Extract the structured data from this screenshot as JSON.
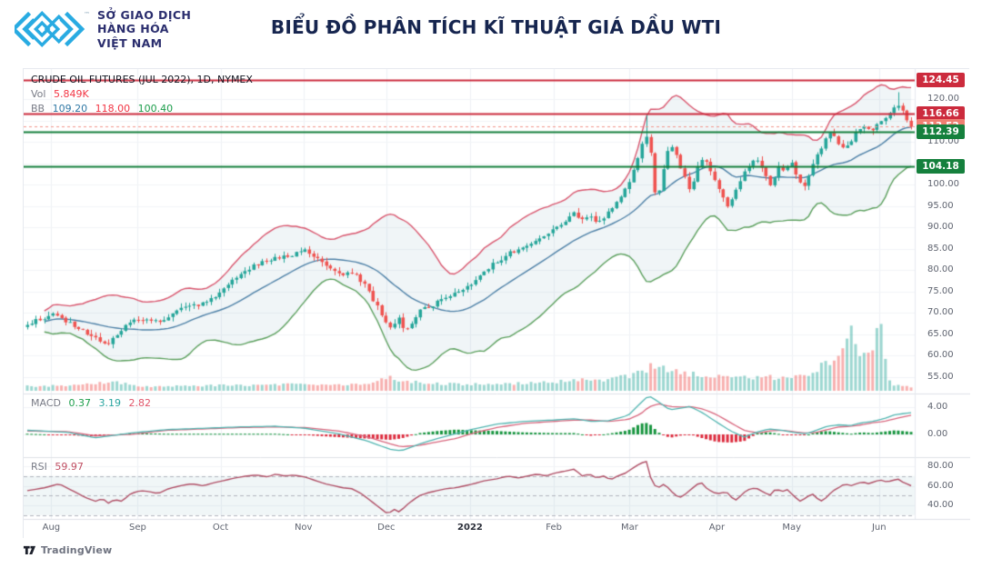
{
  "header": {
    "logo": {
      "line1": "SỞ GIAO DỊCH",
      "line2": "HÀNG HÓA",
      "line3": "VIỆT NAM",
      "tm": "™"
    },
    "title": "BIỂU ĐỒ PHÂN TÍCH KĨ THUẬT GIÁ DẦU WTI"
  },
  "attribution": {
    "text": "TradingView"
  },
  "chart_data": {
    "type": "candlestick",
    "symbol_line": "CRUDE OIL FUTURES (JUL 2022), 1D, NYMEX",
    "interval": "1D",
    "exchange": "NYMEX",
    "indicators": {
      "volume": {
        "label": "Vol",
        "value": "5.849K"
      },
      "bollinger": {
        "label": "BB",
        "basis": "109.20",
        "upper": "118.00",
        "lower": "100.40"
      },
      "macd": {
        "label": "MACD",
        "hist": "0.37",
        "macd": "3.19",
        "signal": "2.82"
      },
      "rsi": {
        "label": "RSI",
        "value": "59.97"
      }
    },
    "levels": [
      {
        "label": "124.45",
        "price": 124.45,
        "style": "solid",
        "line": "#cc2b3d",
        "badge": "#cc2b3d"
      },
      {
        "label": "116.66",
        "price": 116.66,
        "style": "solid",
        "line": "#cc2b3d",
        "badge": "#cc2b3d"
      },
      {
        "label": "113.52",
        "price": 113.52,
        "style": "dashed",
        "line": "#f2968c",
        "badge": "#ef7f72"
      },
      {
        "label": "112.39",
        "price": 112.39,
        "style": "solid",
        "line": "#15803d",
        "badge": "#15803d"
      },
      {
        "label": "104.18",
        "price": 104.18,
        "style": "solid",
        "line": "#15803d",
        "badge": "#15803d"
      }
    ],
    "price_axis_ticks": [
      120,
      115,
      110,
      105,
      100,
      95,
      90,
      85,
      80,
      75,
      70,
      65,
      60,
      55
    ],
    "price_ylim": [
      51,
      127
    ],
    "macd_axis_ticks": [
      4,
      0
    ],
    "rsi_axis_ticks": [
      80,
      60,
      40
    ],
    "rsi_band_levels": [
      70,
      50,
      30
    ],
    "months": [
      {
        "label": "Aug",
        "f": 0.031
      },
      {
        "label": "Sep",
        "f": 0.128
      },
      {
        "label": "Oct",
        "f": 0.221
      },
      {
        "label": "Nov",
        "f": 0.314
      },
      {
        "label": "Dec",
        "f": 0.407
      },
      {
        "label": "2022",
        "f": 0.501
      },
      {
        "label": "Feb",
        "f": 0.595
      },
      {
        "label": "Mar",
        "f": 0.68
      },
      {
        "label": "Apr",
        "f": 0.778
      },
      {
        "label": "May",
        "f": 0.862
      },
      {
        "label": "Jun",
        "f": 0.96
      }
    ],
    "last_close": 113.52,
    "candle_count": 208,
    "price_path": [
      [
        0,
        67.5
      ],
      [
        0.015,
        68.3
      ],
      [
        0.031,
        69.5
      ],
      [
        0.046,
        67.8
      ],
      [
        0.061,
        66
      ],
      [
        0.077,
        63.8
      ],
      [
        0.089,
        62.3
      ],
      [
        0.102,
        65
      ],
      [
        0.117,
        68
      ],
      [
        0.133,
        68.8
      ],
      [
        0.148,
        67.8
      ],
      [
        0.163,
        69.8
      ],
      [
        0.179,
        71.2
      ],
      [
        0.194,
        71.8
      ],
      [
        0.209,
        73.2
      ],
      [
        0.224,
        76
      ],
      [
        0.24,
        78.8
      ],
      [
        0.255,
        80.8
      ],
      [
        0.27,
        82.2
      ],
      [
        0.286,
        83.2
      ],
      [
        0.301,
        83.8
      ],
      [
        0.314,
        84.3
      ],
      [
        0.327,
        83.2
      ],
      [
        0.342,
        80.5
      ],
      [
        0.357,
        79.2
      ],
      [
        0.372,
        78.6
      ],
      [
        0.383,
        76.2
      ],
      [
        0.393,
        72.5
      ],
      [
        0.403,
        68.8
      ],
      [
        0.411,
        66.2
      ],
      [
        0.419,
        68.8
      ],
      [
        0.428,
        66
      ],
      [
        0.436,
        68.2
      ],
      [
        0.444,
        70.2
      ],
      [
        0.454,
        71.4
      ],
      [
        0.464,
        72.4
      ],
      [
        0.474,
        73.4
      ],
      [
        0.485,
        74.8
      ],
      [
        0.501,
        76.6
      ],
      [
        0.515,
        79.4
      ],
      [
        0.531,
        82
      ],
      [
        0.546,
        84
      ],
      [
        0.561,
        85.4
      ],
      [
        0.577,
        86.8
      ],
      [
        0.595,
        89.4
      ],
      [
        0.607,
        91.4
      ],
      [
        0.619,
        93.4
      ],
      [
        0.628,
        91.6
      ],
      [
        0.638,
        92.2
      ],
      [
        0.648,
        91.2
      ],
      [
        0.658,
        93.8
      ],
      [
        0.668,
        96.4
      ],
      [
        0.68,
        100.2
      ],
      [
        0.686,
        103.6
      ],
      [
        0.691,
        106.6
      ],
      [
        0.696,
        109.6
      ],
      [
        0.7,
        111.4
      ],
      [
        0.704,
        110.8
      ],
      [
        0.708,
        99.4
      ],
      [
        0.713,
        96.6
      ],
      [
        0.718,
        102.2
      ],
      [
        0.724,
        107.6
      ],
      [
        0.731,
        109
      ],
      [
        0.737,
        105.2
      ],
      [
        0.743,
        101.8
      ],
      [
        0.75,
        98.6
      ],
      [
        0.758,
        103.8
      ],
      [
        0.765,
        106.2
      ],
      [
        0.772,
        103.2
      ],
      [
        0.779,
        100.4
      ],
      [
        0.787,
        96.6
      ],
      [
        0.794,
        94.6
      ],
      [
        0.801,
        98.2
      ],
      [
        0.809,
        102
      ],
      [
        0.817,
        104.4
      ],
      [
        0.826,
        106
      ],
      [
        0.834,
        102.4
      ],
      [
        0.842,
        99.6
      ],
      [
        0.85,
        104.8
      ],
      [
        0.857,
        103.2
      ],
      [
        0.864,
        105.4
      ],
      [
        0.871,
        101.6
      ],
      [
        0.879,
        99.4
      ],
      [
        0.886,
        103.4
      ],
      [
        0.893,
        106.8
      ],
      [
        0.901,
        109.8
      ],
      [
        0.908,
        112.2
      ],
      [
        0.916,
        110.2
      ],
      [
        0.923,
        108.6
      ],
      [
        0.932,
        110.4
      ],
      [
        0.94,
        112.8
      ],
      [
        0.948,
        114.2
      ],
      [
        0.956,
        112.6
      ],
      [
        0.964,
        114.8
      ],
      [
        0.972,
        116.2
      ],
      [
        0.979,
        117.4
      ],
      [
        0.984,
        118.8
      ],
      [
        0.99,
        117
      ],
      [
        1,
        113.52
      ]
    ],
    "wick_spikes": [
      [
        0.7,
        116.5
      ],
      [
        0.984,
        121.6
      ]
    ],
    "volume_path": [
      [
        0,
        5
      ],
      [
        0.05,
        6
      ],
      [
        0.08,
        8
      ],
      [
        0.1,
        9
      ],
      [
        0.13,
        5
      ],
      [
        0.18,
        5
      ],
      [
        0.22,
        6
      ],
      [
        0.27,
        6
      ],
      [
        0.3,
        7
      ],
      [
        0.34,
        6
      ],
      [
        0.37,
        7
      ],
      [
        0.39,
        9
      ],
      [
        0.403,
        12
      ],
      [
        0.411,
        14
      ],
      [
        0.43,
        11
      ],
      [
        0.46,
        8
      ],
      [
        0.5,
        7
      ],
      [
        0.55,
        8
      ],
      [
        0.6,
        10
      ],
      [
        0.63,
        12
      ],
      [
        0.655,
        11
      ],
      [
        0.68,
        16
      ],
      [
        0.7,
        24
      ],
      [
        0.713,
        28
      ],
      [
        0.73,
        22
      ],
      [
        0.75,
        18
      ],
      [
        0.77,
        16
      ],
      [
        0.79,
        15
      ],
      [
        0.81,
        14
      ],
      [
        0.83,
        16
      ],
      [
        0.85,
        14
      ],
      [
        0.87,
        15
      ],
      [
        0.885,
        18
      ],
      [
        0.895,
        24
      ],
      [
        0.905,
        30
      ],
      [
        0.912,
        38
      ],
      [
        0.92,
        45
      ],
      [
        0.927,
        62
      ],
      [
        0.931,
        72
      ],
      [
        0.936,
        50
      ],
      [
        0.944,
        40
      ],
      [
        0.952,
        42
      ],
      [
        0.958,
        38
      ],
      [
        0.963,
        86
      ],
      [
        0.968,
        58
      ],
      [
        0.973,
        12
      ],
      [
        0.98,
        7
      ],
      [
        0.99,
        5
      ],
      [
        1,
        4
      ]
    ],
    "macd_path": [
      [
        0,
        0.6,
        0.5
      ],
      [
        0.046,
        0.3,
        0.4
      ],
      [
        0.077,
        -0.5,
        -0.2
      ],
      [
        0.117,
        0.2,
        0
      ],
      [
        0.158,
        0.7,
        0.6
      ],
      [
        0.199,
        0.9,
        0.8
      ],
      [
        0.24,
        1.1,
        1
      ],
      [
        0.281,
        1.2,
        1.1
      ],
      [
        0.314,
        0.9,
        1
      ],
      [
        0.352,
        0.1,
        0.5
      ],
      [
        0.383,
        -0.9,
        -0.3
      ],
      [
        0.411,
        -2.2,
        -1.4
      ],
      [
        0.423,
        -2.4,
        -1.8
      ],
      [
        0.444,
        -1.4,
        -1.6
      ],
      [
        0.464,
        -0.6,
        -1.1
      ],
      [
        0.485,
        0.1,
        -0.6
      ],
      [
        0.505,
        0.8,
        0.2
      ],
      [
        0.531,
        1.5,
        1
      ],
      [
        0.561,
        1.9,
        1.6
      ],
      [
        0.595,
        2.1,
        1.9
      ],
      [
        0.619,
        2.3,
        2.1
      ],
      [
        0.638,
        1.9,
        2.1
      ],
      [
        0.658,
        2,
        1.9
      ],
      [
        0.68,
        2.8,
        2.2
      ],
      [
        0.694,
        4.6,
        3
      ],
      [
        0.703,
        5.7,
        4
      ],
      [
        0.714,
        4.8,
        4.5
      ],
      [
        0.727,
        3.6,
        4.1
      ],
      [
        0.742,
        3.9,
        4
      ],
      [
        0.75,
        4.1,
        4.1
      ],
      [
        0.765,
        3.1,
        3.7
      ],
      [
        0.78,
        1.8,
        2.9
      ],
      [
        0.796,
        0.5,
        1.7
      ],
      [
        0.811,
        -0.4,
        0.6
      ],
      [
        0.827,
        0.4,
        0.2
      ],
      [
        0.84,
        0.8,
        0.5
      ],
      [
        0.854,
        0.6,
        0.6
      ],
      [
        0.867,
        0.3,
        0.4
      ],
      [
        0.881,
        0.1,
        0.2
      ],
      [
        0.893,
        0.6,
        0.3
      ],
      [
        0.905,
        1.2,
        0.7
      ],
      [
        0.918,
        1.4,
        1.1
      ],
      [
        0.932,
        1.3,
        1.2
      ],
      [
        0.944,
        1.7,
        1.4
      ],
      [
        0.956,
        1.9,
        1.7
      ],
      [
        0.969,
        2.3,
        1.9
      ],
      [
        0.982,
        2.9,
        2.3
      ],
      [
        1,
        3.19,
        2.82
      ]
    ],
    "rsi_path": [
      [
        0,
        55
      ],
      [
        0.02,
        58
      ],
      [
        0.036,
        62
      ],
      [
        0.051,
        55
      ],
      [
        0.066,
        48
      ],
      [
        0.077,
        44
      ],
      [
        0.085,
        47
      ],
      [
        0.092,
        42
      ],
      [
        0.099,
        46
      ],
      [
        0.107,
        44
      ],
      [
        0.117,
        52
      ],
      [
        0.128,
        55
      ],
      [
        0.138,
        54
      ],
      [
        0.148,
        52
      ],
      [
        0.16,
        57
      ],
      [
        0.173,
        60
      ],
      [
        0.186,
        62
      ],
      [
        0.199,
        60
      ],
      [
        0.211,
        63
      ],
      [
        0.221,
        65
      ],
      [
        0.235,
        68
      ],
      [
        0.248,
        70
      ],
      [
        0.26,
        71
      ],
      [
        0.272,
        69
      ],
      [
        0.281,
        72
      ],
      [
        0.291,
        70
      ],
      [
        0.301,
        71
      ],
      [
        0.314,
        69
      ],
      [
        0.327,
        65
      ],
      [
        0.337,
        62
      ],
      [
        0.347,
        60
      ],
      [
        0.357,
        58
      ],
      [
        0.367,
        57
      ],
      [
        0.378,
        52
      ],
      [
        0.388,
        45
      ],
      [
        0.398,
        38
      ],
      [
        0.408,
        31
      ],
      [
        0.415,
        36
      ],
      [
        0.421,
        33
      ],
      [
        0.429,
        40
      ],
      [
        0.436,
        45
      ],
      [
        0.444,
        50
      ],
      [
        0.454,
        53
      ],
      [
        0.464,
        55
      ],
      [
        0.474,
        57
      ],
      [
        0.485,
        58
      ],
      [
        0.495,
        60
      ],
      [
        0.505,
        62
      ],
      [
        0.517,
        65
      ],
      [
        0.531,
        67
      ],
      [
        0.544,
        70
      ],
      [
        0.556,
        68
      ],
      [
        0.566,
        70
      ],
      [
        0.577,
        72
      ],
      [
        0.587,
        70
      ],
      [
        0.597,
        73
      ],
      [
        0.609,
        75
      ],
      [
        0.619,
        77
      ],
      [
        0.628,
        70
      ],
      [
        0.636,
        72
      ],
      [
        0.644,
        68
      ],
      [
        0.652,
        70
      ],
      [
        0.66,
        66
      ],
      [
        0.668,
        70
      ],
      [
        0.677,
        73
      ],
      [
        0.685,
        78
      ],
      [
        0.694,
        83
      ],
      [
        0.701,
        85
      ],
      [
        0.707,
        62
      ],
      [
        0.714,
        58
      ],
      [
        0.721,
        62
      ],
      [
        0.728,
        55
      ],
      [
        0.734,
        50
      ],
      [
        0.74,
        48
      ],
      [
        0.748,
        54
      ],
      [
        0.756,
        60
      ],
      [
        0.762,
        64
      ],
      [
        0.768,
        58
      ],
      [
        0.776,
        53
      ],
      [
        0.783,
        52
      ],
      [
        0.791,
        54
      ],
      [
        0.797,
        48
      ],
      [
        0.803,
        45
      ],
      [
        0.809,
        52
      ],
      [
        0.816,
        56
      ],
      [
        0.824,
        58
      ],
      [
        0.832,
        54
      ],
      [
        0.84,
        50
      ],
      [
        0.847,
        57
      ],
      [
        0.854,
        54
      ],
      [
        0.86,
        56
      ],
      [
        0.867,
        50
      ],
      [
        0.874,
        44
      ],
      [
        0.88,
        47
      ],
      [
        0.888,
        52
      ],
      [
        0.895,
        46
      ],
      [
        0.9,
        44
      ],
      [
        0.906,
        50
      ],
      [
        0.912,
        55
      ],
      [
        0.918,
        58
      ],
      [
        0.925,
        62
      ],
      [
        0.932,
        60
      ],
      [
        0.938,
        62
      ],
      [
        0.945,
        64
      ],
      [
        0.952,
        62
      ],
      [
        0.958,
        64
      ],
      [
        0.965,
        66
      ],
      [
        0.972,
        64
      ],
      [
        0.978,
        65
      ],
      [
        0.985,
        67
      ],
      [
        0.99,
        64
      ],
      [
        1,
        60
      ]
    ],
    "colors": {
      "up": "#26a69a",
      "down": "#ef5350",
      "vol_up": "rgba(38,166,154,0.45)",
      "vol_down": "rgba(239,83,80,0.45)",
      "bb_upper": "#d9566e",
      "bb_basis": "#4f82a8",
      "bb_lower": "#5ca05e",
      "bb_fill": "rgba(110,160,175,0.10)",
      "macd_line": "#53b6b2",
      "macd_signal": "#d9687f",
      "hist_up": "#17953f",
      "hist_down": "#dd2c3e",
      "rsi_line": "#b04f66",
      "rsi_fill": "rgba(110,165,175,0.10)",
      "grid": "#f2f4f7",
      "separator": "#dfe2e8",
      "axis_text": "#5f6470",
      "legend_vol_value": "#f23645",
      "legend_bb_basis": "#3179a5",
      "legend_bb_upper": "#f23645",
      "legend_bb_lower": "#1e9e4c",
      "legend_macd_hist": "#1e9e4c",
      "legend_macd_line": "#2aa5a0",
      "legend_macd_signal": "#e0556a",
      "legend_rsi_value": "#c04f63"
    }
  }
}
